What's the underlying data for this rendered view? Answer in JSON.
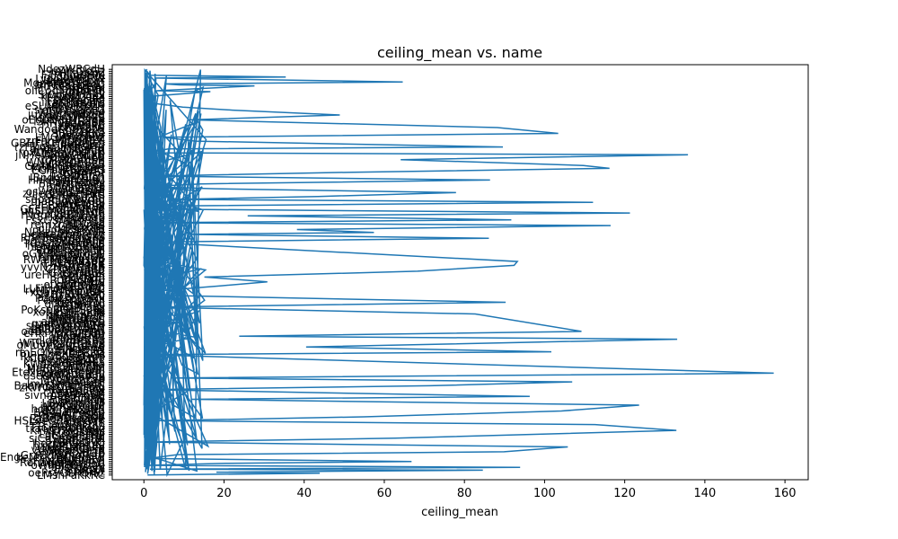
{
  "chart_data": {
    "type": "line",
    "title": "ceiling_mean vs. name",
    "xlabel": "ceiling_mean",
    "ylabel": "",
    "xlim": [
      -7.9,
      165.8
    ],
    "xticks": [
      0,
      20,
      40,
      60,
      80,
      100,
      120,
      140,
      160
    ],
    "xtick_labels": [
      "0",
      "20",
      "40",
      "60",
      "80",
      "100",
      "120",
      "140",
      "160"
    ],
    "grid": false,
    "legend": "none",
    "line_color": "#1f77b4",
    "visible_category_labels": [
      "Engl",
      "Rehagendel"
    ],
    "series": [
      {
        "x": [
          0.8,
          0.5,
          1.6,
          35.4,
          2.7,
          64.6,
          5.2,
          8.8,
          27.6,
          3.1,
          16.6,
          1.2,
          0.4,
          9.7,
          22.1,
          48.9,
          11.3,
          88.2,
          103.4,
          4.7,
          12.8,
          89.6,
          6.1,
          0.9,
          135.8,
          64.1,
          109.7,
          116.2,
          52.3,
          2.4,
          86.4,
          14.2,
          0.6,
          17.8,
          77.9,
          43.5,
          7.4,
          112.1,
          0.3,
          3.6,
          121.3,
          25.9,
          91.7,
          1.9,
          116.5,
          38.2,
          57.4,
          10.9,
          86.1,
          0.7,
          93.2,
          92.4,
          68.3,
          15.1,
          30.8,
          19.4,
          4.3,
          5.5,
          90.3,
          2.1,
          82.7,
          109.2,
          23.8,
          133.1,
          40.5,
          101.7,
          0.5,
          157.2,
          6.8,
          106.9,
          71.4,
          0.8,
          96.3,
          11.7,
          123.6,
          104.2,
          54.9,
          3.3,
          112.6,
          132.9,
          62.7,
          0.4,
          105.8,
          89.9,
          8.3,
          1.1,
          66.8,
          20.5,
          0.6,
          93.9,
          1.5,
          84.6,
          18.1,
          43.9,
          0.9
        ],
        "y": [
          418,
          417,
          412,
          410,
          409,
          405,
          403,
          402,
          401,
          396,
          395,
          390,
          384,
          379,
          376,
          371,
          366,
          358,
          352,
          348,
          344,
          338,
          336,
          332,
          330,
          325,
          319,
          316,
          312,
          308,
          304,
          300,
          297,
          295,
          291,
          287,
          284,
          281,
          277,
          274,
          270,
          267,
          263,
          260,
          257,
          253,
          250,
          248,
          244,
          240,
          220,
          216,
          210,
          204,
          199,
          195,
          190,
          185,
          178,
          173,
          166,
          148,
          143,
          140,
          132,
          127,
          124,
          105,
          100,
          96,
          92,
          88,
          81,
          78,
          72,
          66,
          60,
          56,
          52,
          46,
          38,
          34,
          29,
          24,
          21,
          17,
          14,
          12,
          10,
          8,
          6,
          5,
          3,
          2,
          0
        ]
      }
    ]
  }
}
